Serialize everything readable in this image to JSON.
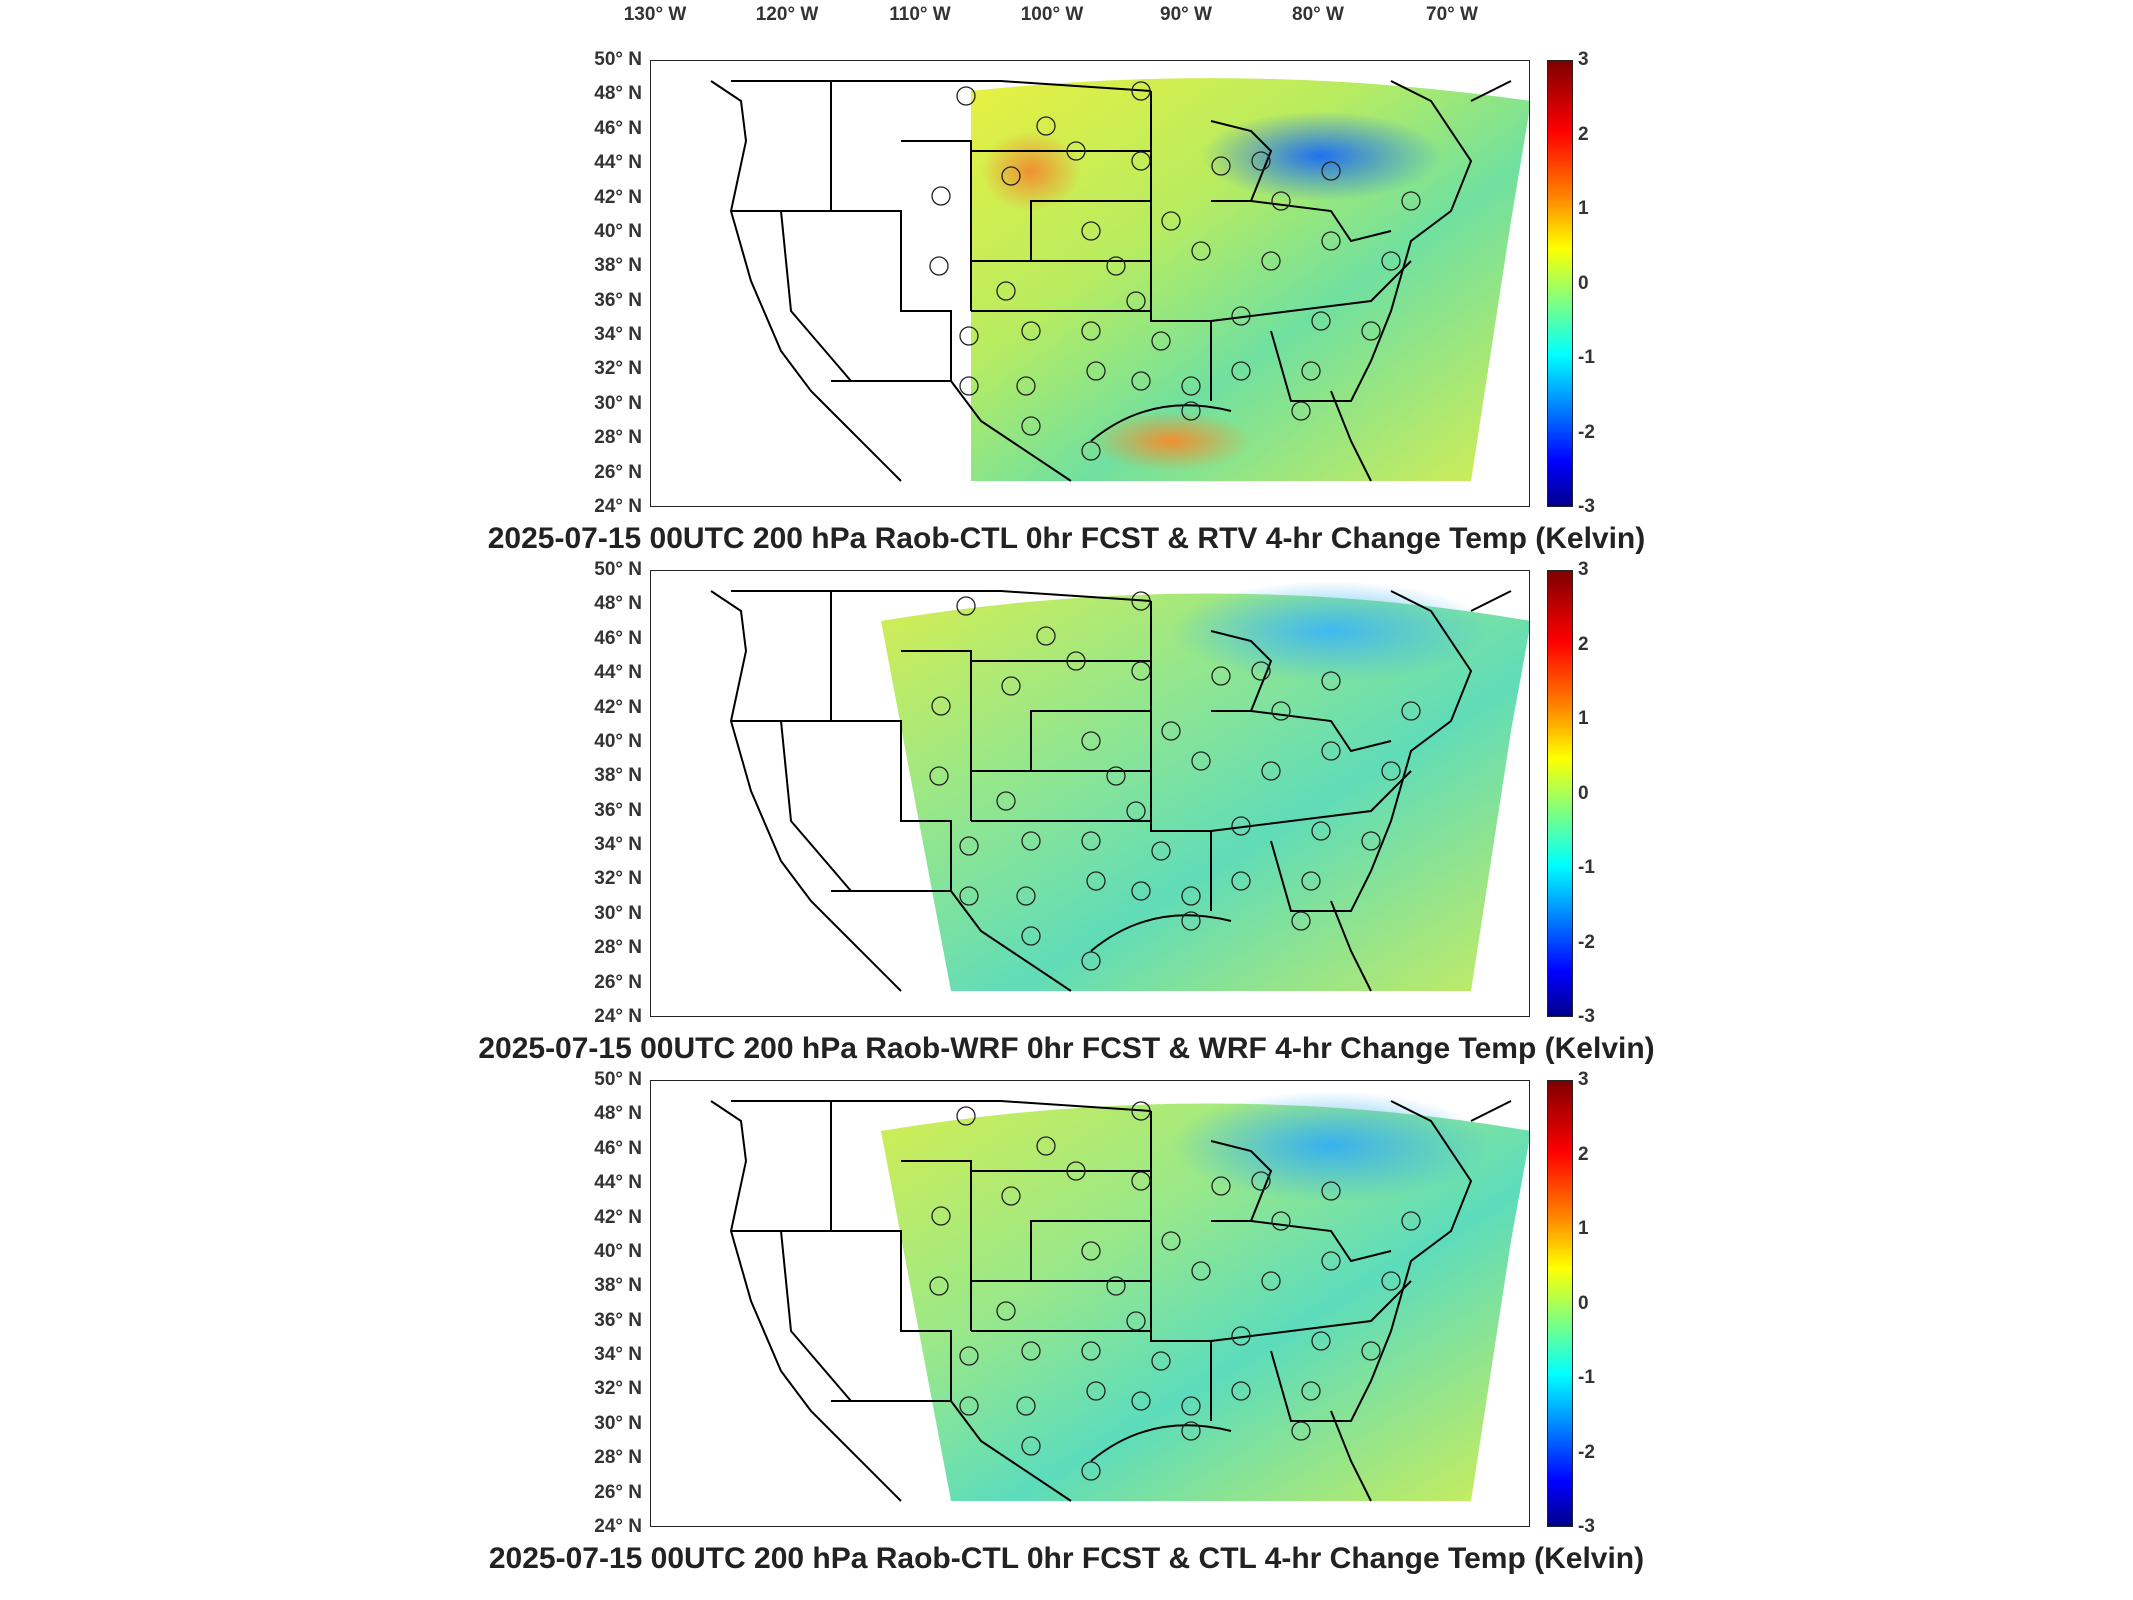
{
  "longitude_labels": [
    "130° W",
    "120° W",
    "110° W",
    "100° W",
    "90° W",
    "80° W",
    "70° W"
  ],
  "latitude_labels": [
    "50° N",
    "48° N",
    "46° N",
    "44° N",
    "42° N",
    "40° N",
    "38° N",
    "36° N",
    "34° N",
    "32° N",
    "30° N",
    "28° N",
    "26° N",
    "24° N"
  ],
  "colorbar": {
    "ticks": [
      "3",
      "2",
      "1",
      "0",
      "-1",
      "-2",
      "-3"
    ],
    "range": [
      -3,
      3
    ],
    "colors": [
      "#800000",
      "#ff0000",
      "#ff8000",
      "#ffff00",
      "#80ff80",
      "#00ffff",
      "#0080ff",
      "#0000ff",
      "#00008b"
    ]
  },
  "panels": [
    {
      "title": "2025-07-15 00UTC 200 hPa Raob-CTL 0hr FCST & RTV 4-hr Change Temp (Kelvin)",
      "field_style": "warm-mixed",
      "domain_extent": "east-of-105W"
    },
    {
      "title": "2025-07-15 00UTC 200 hPa Raob-WRF 0hr FCST & WRF 4-hr Change Temp (Kelvin)",
      "field_style": "smooth-cool",
      "domain_extent": "east-of-110W"
    },
    {
      "title": "2025-07-15 00UTC 200 hPa Raob-CTL 0hr FCST & CTL 4-hr Change Temp (Kelvin)",
      "field_style": "smooth-cool",
      "domain_extent": "east-of-110W"
    }
  ]
}
